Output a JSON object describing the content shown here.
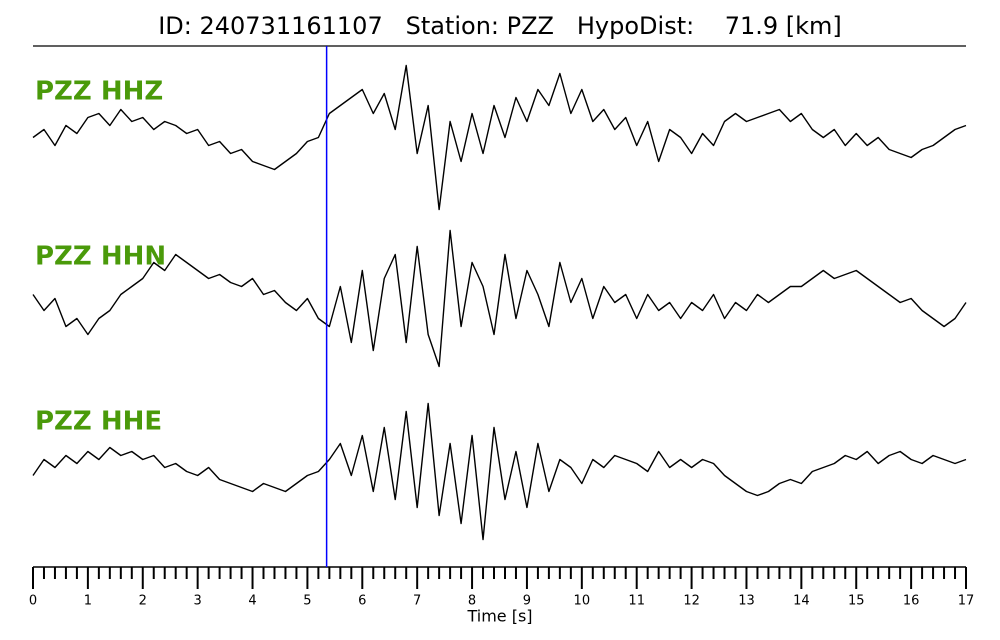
{
  "chart_data": {
    "type": "line",
    "title": "ID: 240731161107   Station: PZZ   HypoDist:    71.9 [km]",
    "xlabel": "Time [s]",
    "xlim": [
      0,
      17
    ],
    "ylim": [
      -1,
      1
    ],
    "xticks": [
      0,
      1,
      2,
      3,
      4,
      5,
      6,
      7,
      8,
      9,
      10,
      11,
      12,
      13,
      14,
      15,
      16,
      17
    ],
    "xminorticks": [
      0.2,
      0.4,
      0.6,
      0.8,
      1.2,
      1.4,
      1.6,
      1.8,
      2.2,
      2.4,
      2.6,
      2.8,
      3.2,
      3.4,
      3.6,
      3.8,
      4.2,
      4.4,
      4.6,
      4.8,
      5.2,
      5.4,
      5.6,
      5.8,
      6.2,
      6.4,
      6.6,
      6.8,
      7.2,
      7.4,
      7.6,
      7.8,
      8.2,
      8.4,
      8.6,
      8.8,
      9.2,
      9.4,
      9.6,
      9.8,
      10.2,
      10.4,
      10.6,
      10.8,
      11.2,
      11.4,
      11.6,
      11.8,
      12.2,
      12.4,
      12.6,
      12.8,
      13.2,
      13.4,
      13.6,
      13.8,
      14.2,
      14.4,
      14.6,
      14.8,
      15.2,
      15.4,
      15.6,
      15.8,
      16.2,
      16.4,
      16.6,
      16.8
    ],
    "pick": 5.35,
    "pick_color": "#0000ff",
    "label_color": "#4a9a0a",
    "x": [
      0,
      0.2,
      0.4,
      0.6,
      0.8,
      1,
      1.2,
      1.4,
      1.6,
      1.8,
      2,
      2.2,
      2.4,
      2.6,
      2.8,
      3,
      3.2,
      3.4,
      3.6,
      3.8,
      4,
      4.2,
      4.4,
      4.6,
      4.8,
      5,
      5.2,
      5.4,
      5.6,
      5.8,
      6,
      6.2,
      6.4,
      6.6,
      6.8,
      7,
      7.2,
      7.4,
      7.6,
      7.8,
      8,
      8.2,
      8.4,
      8.6,
      8.8,
      9,
      9.2,
      9.4,
      9.6,
      9.8,
      10,
      10.2,
      10.4,
      10.6,
      10.8,
      11,
      11.2,
      11.4,
      11.6,
      11.8,
      12,
      12.2,
      12.4,
      12.6,
      12.8,
      13,
      13.2,
      13.4,
      13.6,
      13.8,
      14,
      14.2,
      14.4,
      14.6,
      14.8,
      15,
      15.2,
      15.4,
      15.6,
      15.8,
      16,
      16.2,
      16.4,
      16.6,
      16.8,
      17
    ],
    "series": [
      {
        "name": "PZZ HHZ",
        "color": "#000000",
        "values": [
          0,
          0.1,
          -0.1,
          0.15,
          0.05,
          0.25,
          0.3,
          0.15,
          0.35,
          0.2,
          0.25,
          0.1,
          0.2,
          0.15,
          0.05,
          0.1,
          -0.1,
          -0.05,
          -0.2,
          -0.15,
          -0.3,
          -0.35,
          -0.4,
          -0.3,
          -0.2,
          -0.05,
          0,
          0.3,
          0.4,
          0.5,
          0.6,
          0.3,
          0.55,
          0.1,
          0.9,
          -0.2,
          0.4,
          -0.9,
          0.2,
          -0.3,
          0.3,
          -0.2,
          0.4,
          0,
          0.5,
          0.2,
          0.6,
          0.4,
          0.8,
          0.3,
          0.6,
          0.2,
          0.35,
          0.1,
          0.25,
          -0.1,
          0.2,
          -0.3,
          0.1,
          0,
          -0.2,
          0.05,
          -0.1,
          0.2,
          0.3,
          0.2,
          0.25,
          0.3,
          0.35,
          0.2,
          0.3,
          0.1,
          0,
          0.1,
          -0.1,
          0.05,
          -0.1,
          0,
          -0.15,
          -0.2,
          -0.25,
          -0.15,
          -0.1,
          0,
          0.1,
          0.15
        ]
      },
      {
        "name": "PZZ HHN",
        "color": "#000000",
        "values": [
          0.1,
          -0.1,
          0.05,
          -0.3,
          -0.2,
          -0.4,
          -0.2,
          -0.1,
          0.1,
          0.2,
          0.3,
          0.5,
          0.4,
          0.6,
          0.5,
          0.4,
          0.3,
          0.35,
          0.25,
          0.2,
          0.3,
          0.1,
          0.15,
          0,
          -0.1,
          0.05,
          -0.2,
          -0.3,
          0.2,
          -0.5,
          0.4,
          -0.6,
          0.3,
          0.6,
          -0.5,
          0.7,
          -0.4,
          -0.8,
          0.9,
          -0.3,
          0.5,
          0.2,
          -0.4,
          0.6,
          -0.2,
          0.4,
          0.1,
          -0.3,
          0.5,
          0,
          0.3,
          -0.2,
          0.2,
          0,
          0.1,
          -0.2,
          0.1,
          -0.1,
          0,
          -0.2,
          0,
          -0.1,
          0.1,
          -0.2,
          0,
          -0.1,
          0.1,
          0,
          0.1,
          0.2,
          0.2,
          0.3,
          0.4,
          0.3,
          0.35,
          0.4,
          0.3,
          0.2,
          0.1,
          0,
          0.05,
          -0.1,
          -0.2,
          -0.3,
          -0.2,
          0
        ]
      },
      {
        "name": "PZZ HHE",
        "color": "#000000",
        "values": [
          -0.1,
          0.1,
          0,
          0.15,
          0.05,
          0.2,
          0.1,
          0.25,
          0.15,
          0.2,
          0.1,
          0.15,
          0,
          0.05,
          -0.05,
          -0.1,
          0,
          -0.15,
          -0.2,
          -0.25,
          -0.3,
          -0.2,
          -0.25,
          -0.3,
          -0.2,
          -0.1,
          -0.05,
          0.1,
          0.3,
          -0.1,
          0.4,
          -0.3,
          0.5,
          -0.4,
          0.7,
          -0.5,
          0.8,
          -0.6,
          0.3,
          -0.7,
          0.4,
          -0.9,
          0.5,
          -0.4,
          0.2,
          -0.5,
          0.3,
          -0.3,
          0.1,
          0,
          -0.2,
          0.1,
          0,
          0.15,
          0.1,
          0.05,
          -0.05,
          0.2,
          0,
          0.1,
          0,
          0.1,
          0.05,
          -0.1,
          -0.2,
          -0.3,
          -0.35,
          -0.3,
          -0.2,
          -0.15,
          -0.2,
          -0.05,
          0,
          0.05,
          0.15,
          0.1,
          0.2,
          0.05,
          0.15,
          0.2,
          0.1,
          0.05,
          0.15,
          0.1,
          0.05,
          0.1
        ]
      }
    ]
  }
}
